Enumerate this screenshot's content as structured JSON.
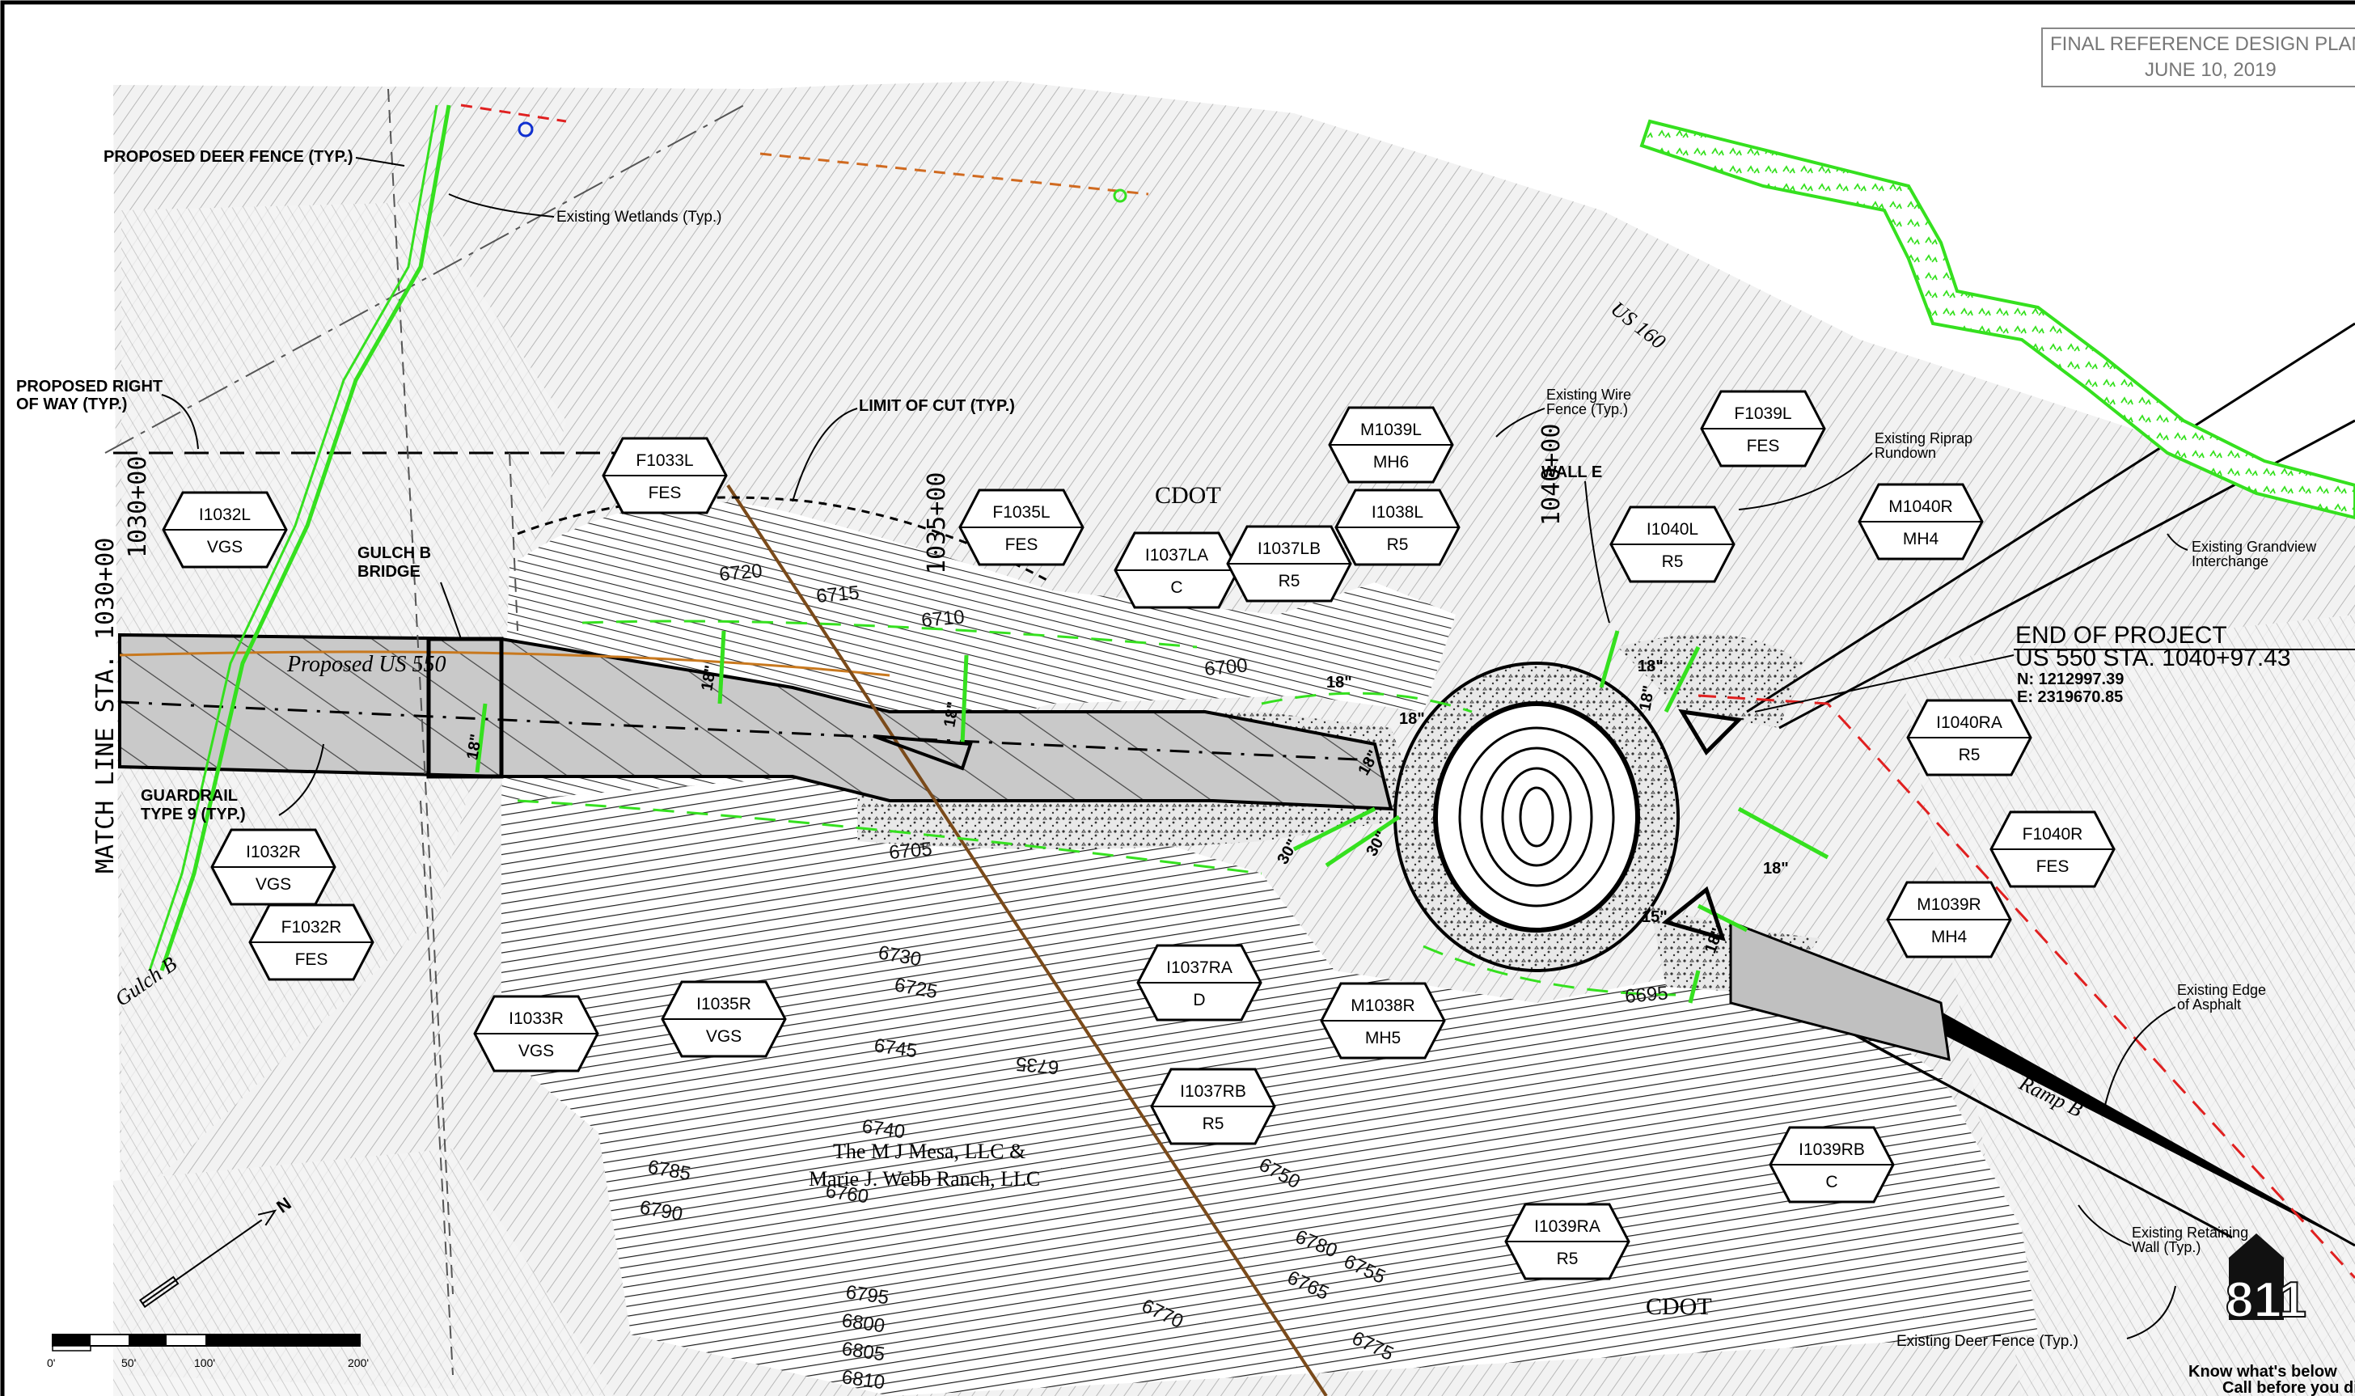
{
  "title_block": {
    "line1": "FINAL REFERENCE DESIGN PLAN",
    "line2": "JUNE 10, 2019"
  },
  "notes": {
    "deer_fence": "PROPOSED DEER FENCE (TYP.)",
    "wetlands": "Existing Wetlands (Typ.)",
    "row_line1": "PROPOSED RIGHT",
    "row_line2": "OF WAY (TYP.)",
    "limit_cut": "LIMIT OF CUT (TYP.)",
    "gulch_line1": "GULCH B",
    "gulch_line2": "BRIDGE",
    "guardrail_line1": "GUARDRAIL",
    "guardrail_line2": "TYPE 9 (TYP.)",
    "wall_e": "WALL E",
    "wire_fence_line1": "Existing Wire",
    "wire_fence_line2": "Fence (Typ.)",
    "riprap_line1": "Existing Riprap",
    "riprap_line2": "Rundown",
    "interchange_line1": "Existing Grandview",
    "interchange_line2": "Interchange",
    "edge_line1": "Existing Edge",
    "edge_line2": "of Asphalt",
    "retaining_line1": "Existing Retaining",
    "retaining_line2": "Wall (Typ.)",
    "exist_deer": "Existing Deer Fence (Typ.)"
  },
  "project_end": {
    "title": "END OF PROJECT",
    "station": "US 550 STA. 1040+97.43",
    "northing": "N: 1212997.39",
    "easting": "E: 2319670.85"
  },
  "labels": {
    "match_line": "MATCH LINE STA. 1030+00",
    "sta_1030": "1030+00",
    "sta_1035": "1035+00",
    "sta_1040": "1040+00",
    "proposed_road": "Proposed US 550",
    "us160": "US 160",
    "ramp_b": "Ramp B",
    "gulch_b": "Gulch B",
    "cdot_top": "CDOT",
    "cdot_bottom": "CDOT",
    "owner_line1": "The M J Mesa, LLC &",
    "owner_line2": "Marie J. Webb Ranch, LLC"
  },
  "contours": [
    "6720",
    "6715",
    "6710",
    "6700",
    "6705",
    "6695",
    "6730",
    "6725",
    "6745",
    "6735",
    "6740",
    "6760",
    "6780",
    "6750",
    "6770",
    "6790",
    "6785",
    "6795",
    "6800",
    "6805",
    "6810",
    "6755",
    "6765",
    "6775"
  ],
  "pipe_sizes": [
    "18\"",
    "18\"",
    "18\"",
    "18\"",
    "18\"",
    "18\"",
    "18\"",
    "18\"",
    "18\"",
    "18\"",
    "30\"",
    "30\"",
    "15\""
  ],
  "tags": [
    {
      "id": "I1032L",
      "type": "VGS"
    },
    {
      "id": "F1033L",
      "type": "FES"
    },
    {
      "id": "F1035L",
      "type": "FES"
    },
    {
      "id": "I1037LA",
      "type": "C"
    },
    {
      "id": "I1037LB",
      "type": "R5"
    },
    {
      "id": "M1039L",
      "type": "MH6"
    },
    {
      "id": "I1038L",
      "type": "R5"
    },
    {
      "id": "F1039L",
      "type": "FES"
    },
    {
      "id": "I1040L",
      "type": "R5"
    },
    {
      "id": "M1040R",
      "type": "MH4"
    },
    {
      "id": "I1040RA",
      "type": "R5"
    },
    {
      "id": "F1040R",
      "type": "FES"
    },
    {
      "id": "M1039R",
      "type": "MH4"
    },
    {
      "id": "I1032R",
      "type": "VGS"
    },
    {
      "id": "F1032R",
      "type": "FES"
    },
    {
      "id": "I1033R",
      "type": "VGS"
    },
    {
      "id": "I1035R",
      "type": "VGS"
    },
    {
      "id": "I1037RA",
      "type": "D"
    },
    {
      "id": "M1038R",
      "type": "MH5"
    },
    {
      "id": "I1037RB",
      "type": "R5"
    },
    {
      "id": "I1039RB",
      "type": "C"
    },
    {
      "id": "I1039RA",
      "type": "R5"
    }
  ],
  "scale": {
    "ticks": [
      "0'",
      "50'",
      "100'",
      "200'"
    ]
  },
  "logo": {
    "number": "811",
    "line1": "Know what's below",
    "line2": "Call before you dig"
  },
  "colors": {
    "proposed_green": "#35e01f",
    "contour_black": "#1a1a1a",
    "existing_grey": "#9a9a9a",
    "road_fill": "#bdbdbd",
    "utility_brown": "#7a4a1a",
    "row_red": "#e02020"
  }
}
